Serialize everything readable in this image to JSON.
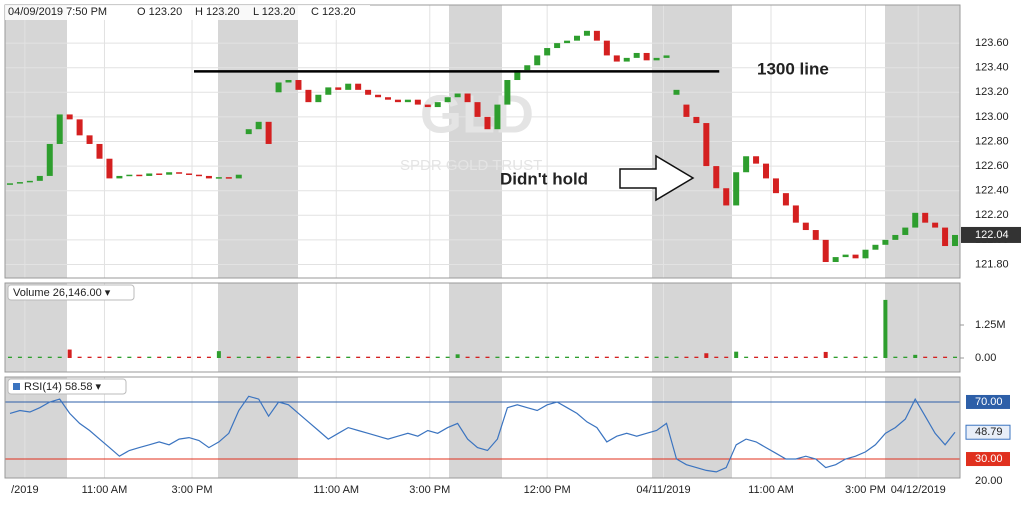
{
  "header": {
    "datetime": "04/09/2019 7:50 PM",
    "ohlc": [
      {
        "key": "O",
        "value": "123.20"
      },
      {
        "key": "H",
        "value": "123.20"
      },
      {
        "key": "L",
        "value": "123.20"
      },
      {
        "key": "C",
        "value": "123.20"
      }
    ]
  },
  "chart_data": [
    {
      "type": "candlestick",
      "watermark": {
        "symbol": "GLD",
        "name": "SPDR GOLD TRUST"
      },
      "annotations": [
        "1300 line",
        "Didn't hold"
      ],
      "reference_line": {
        "value": 123.37,
        "x": [
          18.5,
          71.3
        ]
      },
      "up_color": "#2e9e2e",
      "down_color": "#d42020",
      "x": [
        0,
        1,
        2,
        3,
        4,
        5,
        6,
        7,
        8,
        9,
        10,
        11,
        12,
        13,
        14,
        15,
        16,
        17,
        18,
        19,
        20,
        21,
        22,
        23,
        24,
        25,
        26,
        27,
        28,
        29,
        30,
        31,
        32,
        33,
        34,
        35,
        36,
        37,
        38,
        39,
        40,
        41,
        42,
        43,
        44,
        45,
        46,
        47,
        48,
        49,
        50,
        51,
        52,
        53,
        54,
        55,
        56,
        57,
        58,
        59,
        60,
        61,
        62,
        63,
        64,
        65,
        66,
        67,
        68,
        69,
        70,
        71,
        72,
        73,
        74,
        75,
        76,
        77,
        78,
        79,
        80,
        81,
        82,
        83,
        84,
        85,
        86,
        87,
        88,
        89,
        90,
        91,
        92,
        93,
        94,
        95
      ],
      "open": [
        122.45,
        122.46,
        122.47,
        122.48,
        122.52,
        122.78,
        123.02,
        122.98,
        122.85,
        122.78,
        122.66,
        122.5,
        122.52,
        122.53,
        122.52,
        122.54,
        122.53,
        122.55,
        122.54,
        122.53,
        122.52,
        122.5,
        122.51,
        122.5,
        122.86,
        122.9,
        122.96,
        123.2,
        123.28,
        123.3,
        123.22,
        123.12,
        123.18,
        123.24,
        123.22,
        123.27,
        123.22,
        123.18,
        123.16,
        123.14,
        123.12,
        123.14,
        123.1,
        123.08,
        123.12,
        123.16,
        123.19,
        123.12,
        123.0,
        122.9,
        123.1,
        123.3,
        123.38,
        123.42,
        123.5,
        123.56,
        123.6,
        123.62,
        123.66,
        123.7,
        123.62,
        123.5,
        123.45,
        123.48,
        123.52,
        123.46,
        123.48,
        123.18,
        123.1,
        123.0,
        122.95,
        122.6,
        122.42,
        122.28,
        122.55,
        122.68,
        122.62,
        122.5,
        122.38,
        122.28,
        122.14,
        122.08,
        122.0,
        121.82,
        121.86,
        121.88,
        121.85,
        121.92,
        121.96,
        122.0,
        122.04,
        122.1,
        122.22,
        122.14,
        122.1,
        121.95
      ],
      "close": [
        122.46,
        122.47,
        122.48,
        122.52,
        122.78,
        123.02,
        122.98,
        122.85,
        122.78,
        122.66,
        122.5,
        122.52,
        122.53,
        122.52,
        122.54,
        122.53,
        122.55,
        122.54,
        122.53,
        122.52,
        122.5,
        122.51,
        122.5,
        122.53,
        122.9,
        122.96,
        122.78,
        123.28,
        123.3,
        123.22,
        123.12,
        123.18,
        123.24,
        123.22,
        123.27,
        123.22,
        123.18,
        123.16,
        123.14,
        123.12,
        123.14,
        123.1,
        123.08,
        123.12,
        123.16,
        123.19,
        123.12,
        123.0,
        122.9,
        123.1,
        123.3,
        123.38,
        123.42,
        123.5,
        123.56,
        123.6,
        123.62,
        123.66,
        123.7,
        123.62,
        123.5,
        123.45,
        123.48,
        123.52,
        123.46,
        123.48,
        123.5,
        123.22,
        123.0,
        122.95,
        122.6,
        122.42,
        122.28,
        122.55,
        122.68,
        122.62,
        122.5,
        122.38,
        122.28,
        122.14,
        122.08,
        122.0,
        121.82,
        121.86,
        121.88,
        121.85,
        121.92,
        121.96,
        122.0,
        122.04,
        122.1,
        122.22,
        122.14,
        122.1,
        121.95,
        122.04
      ],
      "xlim": [
        -0.5,
        95.5
      ],
      "xticks": [
        {
          "value": 1.5,
          "label": "/2019"
        },
        {
          "value": 9.5,
          "label": "11:00 AM"
        },
        {
          "value": 18.3,
          "label": "3:00 PM"
        },
        {
          "value": 32.8,
          "label": "11:00 AM"
        },
        {
          "value": 42.2,
          "label": "3:00 PM"
        },
        {
          "value": 54,
          "label": "12:00 PM"
        },
        {
          "value": 65.7,
          "label": "04/11/2019"
        },
        {
          "value": 76.5,
          "label": "11:00 AM"
        },
        {
          "value": 86,
          "label": "3:00 PM"
        },
        {
          "value": 91.3,
          "label": "04/12/2019"
        }
      ],
      "ylim": [
        121.69,
        123.91
      ],
      "yticks": [
        {
          "value": 121.8,
          "label": "121.80"
        },
        {
          "value": 122.0,
          "label": "122.00"
        },
        {
          "value": 122.2,
          "label": "122.20"
        },
        {
          "value": 122.4,
          "label": "122.40"
        },
        {
          "value": 122.6,
          "label": "122.60"
        },
        {
          "value": 122.8,
          "label": "122.80"
        },
        {
          "value": 123.0,
          "label": "123.00"
        },
        {
          "value": 123.2,
          "label": "123.20"
        },
        {
          "value": 123.4,
          "label": "123.40"
        },
        {
          "value": 123.6,
          "label": "123.60"
        }
      ],
      "grid": true
    },
    {
      "type": "bar",
      "name": "Volume",
      "legend_value": "26,146.00",
      "values": [
        50000,
        50000,
        50000,
        50000,
        50000,
        50000,
        320000,
        50000,
        50000,
        50000,
        50000,
        50000,
        50000,
        50000,
        50000,
        50000,
        50000,
        50000,
        50000,
        50000,
        50000,
        260000,
        50000,
        50000,
        50000,
        50000,
        50000,
        50000,
        50000,
        50000,
        50000,
        50000,
        50000,
        50000,
        50000,
        50000,
        50000,
        50000,
        50000,
        50000,
        50000,
        50000,
        50000,
        50000,
        50000,
        140000,
        50000,
        50000,
        50000,
        50000,
        50000,
        50000,
        50000,
        50000,
        50000,
        50000,
        50000,
        50000,
        50000,
        50000,
        50000,
        50000,
        50000,
        50000,
        50000,
        50000,
        50000,
        50000,
        50000,
        50000,
        180000,
        50000,
        50000,
        240000,
        50000,
        50000,
        50000,
        50000,
        50000,
        50000,
        50000,
        50000,
        230000,
        50000,
        50000,
        50000,
        50000,
        50000,
        2200000,
        50000,
        50000,
        120000,
        50000,
        50000,
        50000,
        50000
      ],
      "ylim": [
        -530000,
        2840000
      ],
      "yticks": [
        {
          "value": 0,
          "label": "0.00"
        },
        {
          "value": 1250000,
          "label": "1.25M"
        }
      ]
    },
    {
      "type": "line",
      "name": "RSI(14)",
      "legend_value": "58.58",
      "color": "#3b74c0",
      "values": [
        62,
        64,
        63,
        66,
        70,
        72,
        62,
        55,
        50,
        44,
        38,
        32,
        36,
        38,
        40,
        42,
        40,
        44,
        45,
        43,
        38,
        42,
        48,
        64,
        74,
        72,
        60,
        70,
        68,
        62,
        56,
        50,
        44,
        48,
        52,
        50,
        48,
        46,
        44,
        46,
        48,
        46,
        50,
        48,
        52,
        55,
        44,
        38,
        36,
        44,
        66,
        68,
        66,
        64,
        68,
        70,
        66,
        62,
        56,
        52,
        42,
        46,
        48,
        46,
        48,
        50,
        55,
        30,
        26,
        24,
        22,
        21,
        24,
        40,
        44,
        42,
        38,
        34,
        30,
        30,
        32,
        30,
        24,
        26,
        30,
        32,
        35,
        40,
        48,
        52,
        58,
        72,
        60,
        48,
        40,
        48.79
      ],
      "ylim": [
        16.7,
        87.5
      ],
      "yticks": [
        {
          "value": 70,
          "label": "70.00"
        },
        {
          "value": 30,
          "label": "30.00"
        },
        {
          "value": 20,
          "label": "20.00"
        }
      ],
      "level_colors": [
        "#2d5fa8",
        "#e0301e"
      ]
    }
  ]
}
